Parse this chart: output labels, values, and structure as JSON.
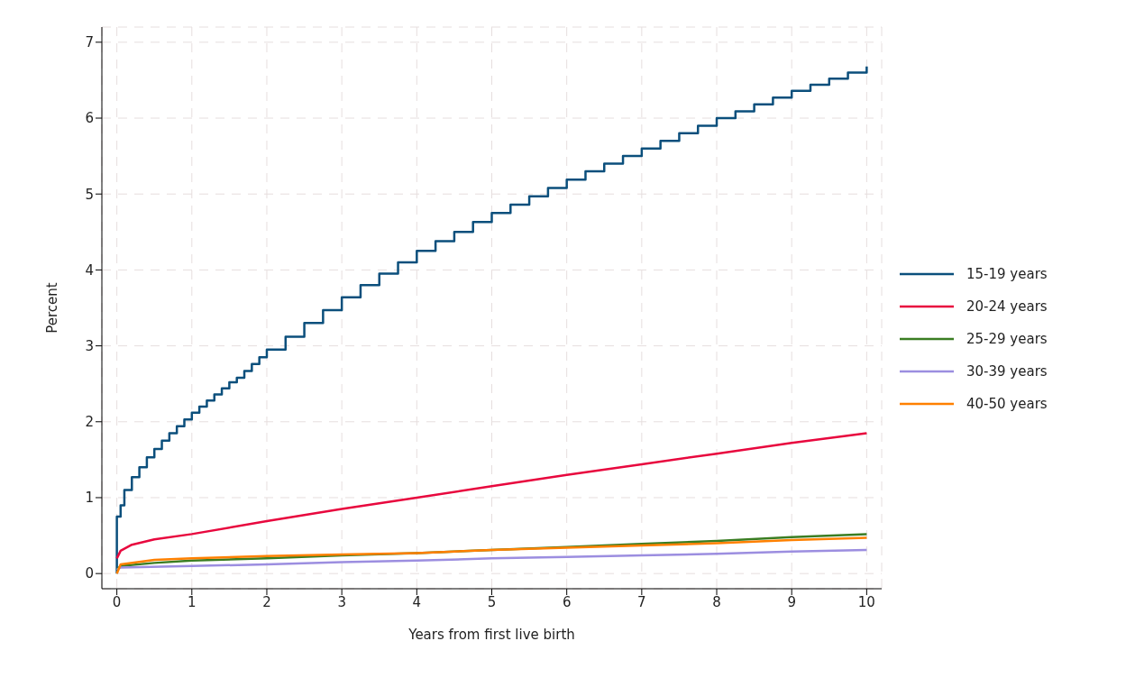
{
  "chart_data": {
    "type": "line",
    "xlabel": "Years from first live birth",
    "ylabel": "Percent",
    "xlim": [
      -0.2,
      10.2
    ],
    "ylim": [
      -0.2,
      7.2
    ],
    "xticks": [
      0,
      1,
      2,
      3,
      4,
      5,
      6,
      7,
      8,
      9,
      10
    ],
    "yticks": [
      0,
      1,
      2,
      3,
      4,
      5,
      6,
      7
    ],
    "grid": true,
    "legend": "right",
    "line_style": "solid",
    "series": [
      {
        "name": "15-19 years",
        "type": "step",
        "color": "#0b4f7c",
        "x": [
          0,
          0,
          0.05,
          0.1,
          0.2,
          0.3,
          0.4,
          0.5,
          0.6,
          0.7,
          0.8,
          0.9,
          1,
          1.1,
          1.2,
          1.3,
          1.4,
          1.5,
          1.6,
          1.7,
          1.8,
          1.9,
          2,
          2.25,
          2.5,
          2.75,
          3,
          3.25,
          3.5,
          3.75,
          4,
          4.25,
          4.5,
          4.75,
          5,
          5.25,
          5.5,
          5.75,
          6,
          6.25,
          6.5,
          6.75,
          7,
          7.25,
          7.5,
          7.75,
          8,
          8.25,
          8.5,
          8.75,
          9,
          9.25,
          9.5,
          9.75,
          10
        ],
        "values": [
          0,
          0.75,
          0.9,
          1.1,
          1.27,
          1.4,
          1.53,
          1.64,
          1.75,
          1.85,
          1.94,
          2.03,
          2.12,
          2.2,
          2.28,
          2.36,
          2.44,
          2.52,
          2.58,
          2.67,
          2.76,
          2.85,
          2.95,
          3.12,
          3.3,
          3.47,
          3.64,
          3.8,
          3.95,
          4.1,
          4.25,
          4.38,
          4.5,
          4.63,
          4.75,
          4.86,
          4.97,
          5.08,
          5.19,
          5.3,
          5.4,
          5.5,
          5.6,
          5.7,
          5.8,
          5.9,
          6,
          6.09,
          6.18,
          6.27,
          6.36,
          6.44,
          6.52,
          6.6,
          6.68
        ]
      },
      {
        "name": "20-24 years",
        "color": "#e8083e",
        "x": [
          0,
          0.05,
          0.2,
          0.5,
          1,
          2,
          3,
          4,
          5,
          6,
          7,
          8,
          9,
          10
        ],
        "values": [
          0.2,
          0.3,
          0.38,
          0.45,
          0.52,
          0.69,
          0.85,
          1.0,
          1.15,
          1.3,
          1.44,
          1.58,
          1.72,
          1.85
        ]
      },
      {
        "name": "25-29 years",
        "color": "#3a7d22",
        "x": [
          0,
          0.05,
          0.5,
          1,
          2,
          3,
          4,
          5,
          6,
          7,
          8,
          9,
          10
        ],
        "values": [
          0.05,
          0.1,
          0.14,
          0.17,
          0.2,
          0.24,
          0.27,
          0.31,
          0.35,
          0.39,
          0.43,
          0.48,
          0.52
        ]
      },
      {
        "name": "30-39 years",
        "color": "#9c8ee0",
        "x": [
          0,
          0.05,
          1,
          2,
          3,
          4,
          5,
          6,
          7,
          8,
          9,
          10
        ],
        "values": [
          0.05,
          0.08,
          0.1,
          0.12,
          0.15,
          0.17,
          0.2,
          0.22,
          0.24,
          0.26,
          0.29,
          0.31
        ]
      },
      {
        "name": "40-50 years",
        "color": "#ff8000",
        "x": [
          0,
          0.05,
          0.5,
          1,
          2,
          3,
          4,
          5,
          6,
          7,
          8,
          9,
          10
        ],
        "values": [
          0,
          0.12,
          0.18,
          0.2,
          0.23,
          0.25,
          0.27,
          0.31,
          0.34,
          0.37,
          0.4,
          0.44,
          0.47
        ]
      }
    ]
  }
}
